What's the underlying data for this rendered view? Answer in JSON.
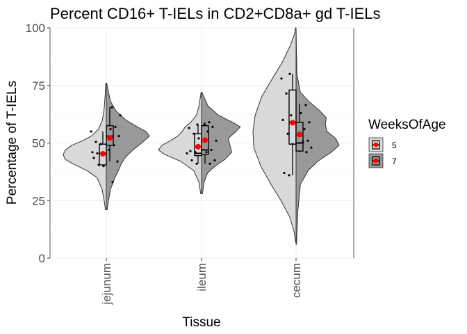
{
  "chart_data": {
    "type": "split-violin-box",
    "title": "Percent CD16+ T-IELs in CD2+CD8a+ gd T-IELs",
    "xlabel": "Tissue",
    "ylabel": "Percentage of T-IELs",
    "ylim": [
      0,
      100
    ],
    "yticks": [
      "0",
      "25",
      "50",
      "75",
      "100"
    ],
    "categories": [
      "jejunum",
      "ileum",
      "cecum"
    ],
    "grid": true,
    "legend": {
      "title": "WeeksOfAge",
      "position": "right",
      "items": [
        {
          "label": "5",
          "color": "#d9d9d9"
        },
        {
          "label": "7",
          "color": "#999999"
        }
      ]
    },
    "mean_color": "#ff0000",
    "series": [
      {
        "name": "5",
        "fill": "#d9d9d9",
        "groups": [
          {
            "category": "jejunum",
            "violin_range": [
              21,
              76
            ],
            "density": [
              [
                21,
                0.02
              ],
              [
                25,
                0.05
              ],
              [
                30,
                0.1
              ],
              [
                35,
                0.22
              ],
              [
                38,
                0.45
              ],
              [
                41,
                0.78
              ],
              [
                43,
                0.96
              ],
              [
                45,
                1.0
              ],
              [
                47,
                0.95
              ],
              [
                49,
                0.8
              ],
              [
                51,
                0.55
              ],
              [
                53,
                0.35
              ],
              [
                56,
                0.18
              ],
              [
                60,
                0.09
              ],
              [
                65,
                0.05
              ],
              [
                70,
                0.03
              ],
              [
                76,
                0.01
              ]
            ],
            "box": {
              "min": 40,
              "q1": 40.5,
              "median": 45.5,
              "q3": 49.5,
              "max": 55
            },
            "mean": 45.3,
            "points": [
              40,
              40.5,
              43.5,
              45,
              45.5,
              46,
              49.5,
              50.5,
              55
            ]
          },
          {
            "category": "ileum",
            "violin_range": [
              28,
              72
            ],
            "density": [
              [
                28,
                0.02
              ],
              [
                33,
                0.06
              ],
              [
                38,
                0.18
              ],
              [
                42,
                0.48
              ],
              [
                45,
                0.85
              ],
              [
                47,
                1.0
              ],
              [
                49,
                0.92
              ],
              [
                51,
                0.72
              ],
              [
                53,
                0.55
              ],
              [
                55,
                0.45
              ],
              [
                57,
                0.38
              ],
              [
                59,
                0.25
              ],
              [
                62,
                0.12
              ],
              [
                66,
                0.06
              ],
              [
                72,
                0.01
              ]
            ],
            "box": {
              "min": 41,
              "q1": 44.5,
              "median": 45.5,
              "q3": 54,
              "max": 58
            },
            "mean": 48.4,
            "points": [
              41,
              42.5,
              45.5,
              46,
              46.5,
              52,
              54,
              56.5,
              58
            ]
          },
          {
            "category": "cecum",
            "violin_range": [
              7,
              100
            ],
            "density": [
              [
                7,
                0.01
              ],
              [
                12,
                0.05
              ],
              [
                18,
                0.15
              ],
              [
                25,
                0.35
              ],
              [
                32,
                0.58
              ],
              [
                40,
                0.82
              ],
              [
                48,
                0.98
              ],
              [
                55,
                1.0
              ],
              [
                62,
                0.95
              ],
              [
                70,
                0.8
              ],
              [
                78,
                0.55
              ],
              [
                85,
                0.32
              ],
              [
                92,
                0.14
              ],
              [
                97,
                0.04
              ],
              [
                100,
                0.01
              ]
            ],
            "box": {
              "min": 36,
              "q1": 49.5,
              "median": 59,
              "q3": 73,
              "max": 80
            },
            "mean": 58.8,
            "points": [
              36,
              37,
              49.5,
              54,
              60,
              62,
              71.5,
              78,
              80
            ]
          }
        ]
      },
      {
        "name": "7",
        "fill": "#999999",
        "groups": [
          {
            "category": "jejunum",
            "violin_range": [
              21,
              76
            ],
            "density": [
              [
                21,
                0.02
              ],
              [
                25,
                0.05
              ],
              [
                30,
                0.1
              ],
              [
                35,
                0.2
              ],
              [
                38,
                0.28
              ],
              [
                41,
                0.35
              ],
              [
                44,
                0.45
              ],
              [
                47,
                0.62
              ],
              [
                50,
                0.82
              ],
              [
                53,
                1.0
              ],
              [
                55,
                0.92
              ],
              [
                57,
                0.72
              ],
              [
                60,
                0.45
              ],
              [
                64,
                0.22
              ],
              [
                68,
                0.1
              ],
              [
                72,
                0.05
              ],
              [
                76,
                0.01
              ]
            ],
            "box": {
              "min": 42,
              "q1": 49,
              "median": 53,
              "q3": 57.5,
              "max": 65.5
            },
            "mean": 52.2,
            "points": [
              33,
              42,
              47,
              49,
              53,
              56,
              57,
              62,
              65.5
            ]
          },
          {
            "category": "ileum",
            "violin_range": [
              28,
              72
            ],
            "density": [
              [
                28,
                0.02
              ],
              [
                33,
                0.06
              ],
              [
                37,
                0.14
              ],
              [
                40,
                0.32
              ],
              [
                43,
                0.55
              ],
              [
                46,
                0.7
              ],
              [
                49,
                0.66
              ],
              [
                52,
                0.62
              ],
              [
                55,
                0.8
              ],
              [
                57,
                0.9
              ],
              [
                59,
                0.72
              ],
              [
                62,
                0.4
              ],
              [
                66,
                0.15
              ],
              [
                72,
                0.01
              ]
            ],
            "box": {
              "min": 41,
              "q1": 45,
              "median": 47,
              "q3": 57.5,
              "max": 59
            },
            "mean": 51.2,
            "points": [
              41,
              42.5,
              46,
              47,
              51,
              55,
              57,
              58,
              59
            ]
          },
          {
            "category": "cecum",
            "violin_range": [
              6,
              100
            ],
            "density": [
              [
                6,
                0.01
              ],
              [
                20,
                0.04
              ],
              [
                32,
                0.1
              ],
              [
                38,
                0.28
              ],
              [
                42,
                0.5
              ],
              [
                46,
                0.82
              ],
              [
                49,
                1.0
              ],
              [
                52,
                0.92
              ],
              [
                55,
                0.72
              ],
              [
                58,
                0.68
              ],
              [
                61,
                0.7
              ],
              [
                64,
                0.55
              ],
              [
                68,
                0.3
              ],
              [
                72,
                0.1
              ],
              [
                80,
                0.02
              ],
              [
                100,
                0.0
              ]
            ],
            "box": {
              "min": 46,
              "q1": 46.5,
              "median": 50,
              "q3": 59,
              "max": 67
            },
            "mean": 53.7,
            "points": [
              46,
              48,
              50.5,
              51,
              53,
              56,
              59,
              63,
              66.5
            ]
          }
        ]
      }
    ]
  }
}
